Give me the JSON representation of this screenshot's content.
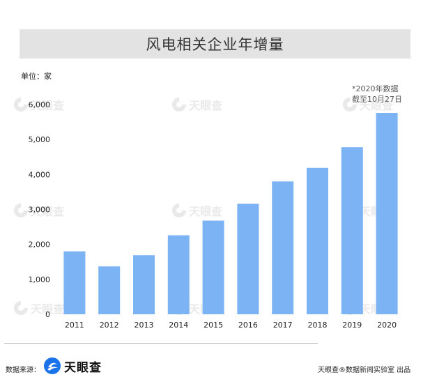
{
  "chart_data": {
    "type": "bar",
    "title": "风电相关企业年增量",
    "unit_label": "单位：家",
    "note_lines": [
      "*2020年数据",
      "截至10月27日"
    ],
    "categories": [
      "2011",
      "2012",
      "2013",
      "2014",
      "2015",
      "2016",
      "2017",
      "2018",
      "2019",
      "2020"
    ],
    "values": [
      1800,
      1370,
      1690,
      2260,
      2680,
      3160,
      3800,
      4190,
      4780,
      5760
    ],
    "ylim": [
      0,
      6000
    ],
    "yticks": [
      0,
      1000,
      2000,
      3000,
      4000,
      5000,
      6000
    ],
    "ytick_labels": [
      "0",
      "1,000",
      "2,000",
      "3,000",
      "4,000",
      "5,000",
      "6,000"
    ],
    "grid": false,
    "bar_color": "#7cb3f4"
  },
  "footer": {
    "source_label": "数据来源：",
    "source_brand": "天眼查",
    "credit": "天眼查®数据新闻实验室 出品"
  },
  "watermark": {
    "text": "天眼查"
  },
  "colors": {
    "title_band": "#e3e3e3",
    "bar": "#7cb3f4",
    "logo_blue": "#1a73e8"
  }
}
